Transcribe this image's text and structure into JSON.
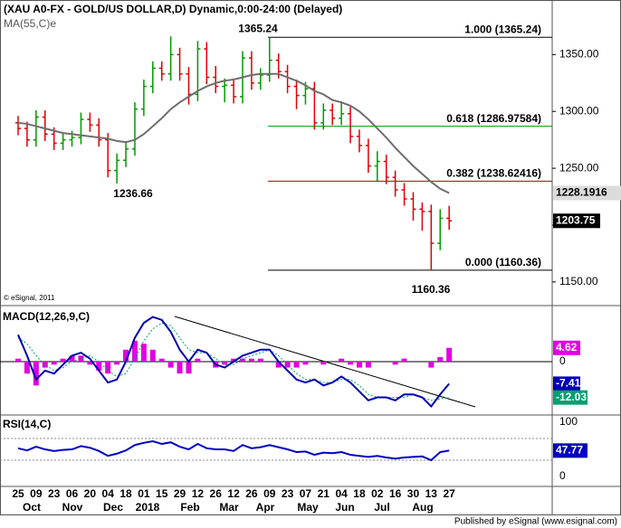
{
  "footer": "Published by eSignal (www.esignal.com)",
  "chart_data": [
    {
      "type": "ohlc",
      "title": "(XAU A0-FX - GOLD/US DOLLAR,D) Dynamic,0:00-24:00 (Delayed)",
      "watermark": "© eSignal, 2011",
      "up_color": "#009900",
      "down_color": "#e00000",
      "open": [
        1290,
        1285,
        1275,
        1295,
        1280,
        1272,
        1275,
        1277,
        1293,
        1288,
        1275,
        1248,
        1257,
        1267,
        1302,
        1322,
        1338,
        1333,
        1350,
        1333,
        1315,
        1355,
        1330,
        1322,
        1323,
        1313,
        1347,
        1325,
        1332,
        1345,
        1335,
        1322,
        1314,
        1320,
        1290,
        1301,
        1294,
        1298,
        1278,
        1270,
        1252,
        1256,
        1242,
        1231,
        1223,
        1214,
        1212,
        1184,
        1206
      ],
      "high": [
        1296,
        1291,
        1301,
        1301,
        1286,
        1281,
        1283,
        1299,
        1299,
        1294,
        1281,
        1263,
        1273,
        1308,
        1328,
        1344,
        1344,
        1366,
        1356,
        1339,
        1362,
        1361,
        1340,
        1329,
        1329,
        1353,
        1353,
        1338,
        1365.24,
        1351,
        1341,
        1328,
        1326,
        1326,
        1307,
        1307,
        1309,
        1304,
        1284,
        1276,
        1265,
        1262,
        1248,
        1237,
        1229,
        1220,
        1218,
        1214,
        1217
      ],
      "low": [
        1279,
        1269,
        1269,
        1274,
        1266,
        1266,
        1269,
        1271,
        1282,
        1269,
        1242,
        1236.66,
        1251,
        1261,
        1296,
        1316,
        1327,
        1327,
        1327,
        1306,
        1309,
        1324,
        1316,
        1308,
        1307,
        1307,
        1319,
        1319,
        1326,
        1329,
        1316,
        1302,
        1306,
        1284,
        1284,
        1288,
        1288,
        1272,
        1264,
        1246,
        1238,
        1236,
        1225,
        1217,
        1204,
        1195,
        1160.36,
        1178,
        1196
      ],
      "close": [
        1285,
        1275,
        1295,
        1280,
        1272,
        1275,
        1277,
        1293,
        1288,
        1275,
        1248,
        1257,
        1267,
        1302,
        1322,
        1338,
        1333,
        1350,
        1333,
        1315,
        1355,
        1330,
        1322,
        1323,
        1313,
        1347,
        1325,
        1332,
        1345,
        1335,
        1322,
        1314,
        1320,
        1290,
        1301,
        1294,
        1298,
        1278,
        1270,
        1252,
        1256,
        1242,
        1231,
        1223,
        1214,
        1212,
        1184,
        1206,
        1203.75
      ],
      "ma": {
        "name": "MA(55,C)e",
        "color": "#6e6e6e",
        "values": [
          1290,
          1289,
          1287,
          1285,
          1283,
          1281,
          1280,
          1279,
          1278,
          1277,
          1276,
          1274,
          1273,
          1275,
          1280,
          1287,
          1294,
          1302,
          1308,
          1313,
          1318,
          1322,
          1325,
          1327,
          1328,
          1330,
          1332,
          1333,
          1333,
          1333,
          1330,
          1327,
          1323,
          1318,
          1315,
          1310,
          1308,
          1305,
          1300,
          1293,
          1285,
          1277,
          1268,
          1260,
          1252,
          1245,
          1238,
          1232,
          1228.1916
        ]
      },
      "fib_levels": [
        {
          "label": "1.000 (1365.24)",
          "value": 1365.24,
          "color": "#000000"
        },
        {
          "label": "0.618 (1286.97584)",
          "value": 1286.97584,
          "color": "#009900"
        },
        {
          "label": "0.382 (1238.62416)",
          "value": 1238.62416,
          "color": "#b00000"
        },
        {
          "label": "0.000 (1160.36)",
          "value": 1160.36,
          "color": "#000000"
        }
      ],
      "extremes": [
        1365.24,
        1236.66,
        1160.36
      ],
      "ylim": [
        1130,
        1398
      ],
      "yticks": [
        {
          "value": 1150,
          "label": "1150.00"
        },
        {
          "value": 1200,
          "label": "1200.00"
        },
        {
          "value": 1250,
          "label": "1250.00"
        },
        {
          "value": 1300,
          "label": "1300.00"
        },
        {
          "value": 1350,
          "label": "1350.00"
        }
      ]
    },
    {
      "type": "macd",
      "title": "MACD(12,26,9,C)",
      "macd": {
        "color": "#0000b0",
        "values": [
          9,
          2,
          -6,
          -3,
          -4,
          -1,
          2,
          3,
          1,
          -3,
          -7,
          -6,
          0,
          8,
          13,
          15,
          14,
          10,
          4,
          0,
          4,
          3,
          -1,
          -2,
          0,
          2,
          3,
          4,
          4,
          0,
          -3,
          -6,
          -7,
          -6,
          -8,
          -7,
          -5,
          -7,
          -10,
          -13,
          -12,
          -12,
          -13,
          -11,
          -11,
          -12,
          -15,
          -11,
          -7.41
        ]
      },
      "signal": {
        "color": "#00a070",
        "values": [
          8,
          6,
          2,
          -1,
          -3,
          -2,
          0,
          1,
          2,
          0,
          -3,
          -5,
          -4,
          1,
          7,
          11,
          13,
          12,
          8,
          4,
          3,
          3,
          1,
          -1,
          -1,
          1,
          2,
          3,
          4,
          2,
          -1,
          -4,
          -6,
          -6,
          -7,
          -7,
          -6,
          -6,
          -8,
          -11,
          -12,
          -12,
          -12,
          -12,
          -11,
          -12,
          -13,
          -12.5,
          -12.03
        ]
      },
      "histogram": {
        "color": "#e000e0",
        "values": [
          1,
          -4,
          -8,
          -2,
          -1,
          1,
          2,
          2,
          -1,
          -3,
          -4,
          -1,
          4,
          7,
          6,
          4,
          1,
          -2,
          -4,
          -4,
          1,
          0,
          -2,
          -1,
          1,
          1,
          1,
          1,
          0,
          -2,
          -2,
          -2,
          -1,
          0,
          -1,
          0,
          1,
          -1,
          -2,
          -2,
          0,
          0,
          -1,
          1,
          0,
          0,
          -2,
          1.5,
          4.62
        ]
      },
      "ylim": [
        -17.6,
        18.2
      ],
      "yticks": [
        0
      ]
    },
    {
      "type": "line",
      "title": "RSI(14,C)",
      "color": "#0000c0",
      "values": [
        52,
        48,
        55,
        50,
        47,
        49,
        50,
        56,
        53,
        47,
        38,
        42,
        48,
        58,
        62,
        65,
        60,
        63,
        55,
        50,
        60,
        52,
        50,
        50,
        47,
        58,
        52,
        54,
        58,
        54,
        50,
        45,
        46,
        40,
        44,
        43,
        45,
        40,
        38,
        36,
        38,
        35,
        33,
        35,
        36,
        37,
        30,
        45,
        47.77
      ],
      "levels": [
        70,
        30
      ],
      "ylim": [
        -18.3,
        111.7
      ],
      "yticks": [
        0,
        50,
        100
      ],
      "categories": [
        "25",
        null,
        "09",
        null,
        "23",
        null,
        "06",
        null,
        "20",
        null,
        "04",
        null,
        "18",
        null,
        "01",
        null,
        "15",
        null,
        "29",
        null,
        "12",
        null,
        "26",
        null,
        "12",
        null,
        "26",
        null,
        "09",
        null,
        "23",
        null,
        "07",
        null,
        "21",
        null,
        "04",
        null,
        "18",
        null,
        "02",
        null,
        "16",
        null,
        "30",
        null,
        "13",
        null,
        "27"
      ],
      "months": [
        "Oct",
        "Nov",
        "Dec",
        "2018",
        "Feb",
        "Mar",
        "Apr",
        "May",
        "Jun",
        "Jul",
        "Aug"
      ]
    }
  ]
}
